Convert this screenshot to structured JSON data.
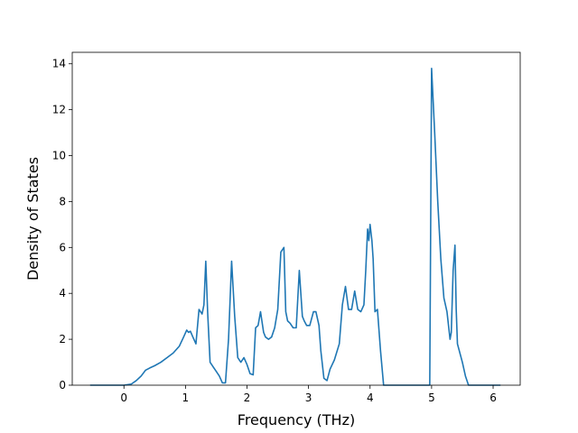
{
  "chart_data": {
    "type": "line",
    "title": "",
    "xlabel": "Frequency (THz)",
    "ylabel": "Density of States",
    "xlim": [
      -0.84,
      6.44
    ],
    "ylim": [
      0,
      14.5
    ],
    "xticks": [
      0,
      1,
      2,
      3,
      4,
      5,
      6
    ],
    "yticks": [
      0,
      2,
      4,
      6,
      8,
      10,
      12,
      14
    ],
    "grid": false,
    "legend": "none",
    "colors": {
      "line": "#1f77b4"
    },
    "series": [
      {
        "x": [
          -0.55,
          -0.3,
          0.0,
          0.12,
          0.2,
          0.28,
          0.35,
          0.42,
          0.5,
          0.6,
          0.7,
          0.8,
          0.9,
          0.97,
          1.02,
          1.05,
          1.08,
          1.12,
          1.17,
          1.22,
          1.27,
          1.3,
          1.33,
          1.36,
          1.4,
          1.45,
          1.5,
          1.55,
          1.6,
          1.65,
          1.7,
          1.75,
          1.8,
          1.85,
          1.9,
          1.95,
          2.0,
          2.05,
          2.1,
          2.14,
          2.18,
          2.22,
          2.27,
          2.3,
          2.35,
          2.4,
          2.45,
          2.5,
          2.55,
          2.6,
          2.63,
          2.66,
          2.7,
          2.75,
          2.8,
          2.85,
          2.9,
          2.93,
          2.97,
          3.02,
          3.08,
          3.12,
          3.17,
          3.2,
          3.25,
          3.3,
          3.35,
          3.42,
          3.5,
          3.55,
          3.6,
          3.65,
          3.7,
          3.75,
          3.8,
          3.85,
          3.9,
          3.93,
          3.96,
          3.98,
          4.0,
          4.03,
          4.05,
          4.08,
          4.12,
          4.17,
          4.22,
          4.28,
          4.5,
          4.97,
          5.0,
          5.05,
          5.1,
          5.15,
          5.2,
          5.25,
          5.3,
          5.32,
          5.35,
          5.38,
          5.4,
          5.42,
          5.45,
          5.5,
          5.55,
          5.6,
          5.7,
          6.0,
          6.12
        ],
        "y": [
          0,
          0,
          0,
          0.05,
          0.2,
          0.4,
          0.65,
          0.75,
          0.85,
          1.0,
          1.2,
          1.4,
          1.7,
          2.1,
          2.4,
          2.3,
          2.35,
          2.1,
          1.8,
          3.3,
          3.1,
          3.5,
          5.4,
          3.2,
          1.0,
          0.8,
          0.6,
          0.4,
          0.1,
          0.1,
          2.0,
          5.4,
          3.0,
          1.2,
          1.0,
          1.2,
          0.9,
          0.5,
          0.45,
          2.5,
          2.6,
          3.2,
          2.3,
          2.1,
          2.0,
          2.1,
          2.5,
          3.3,
          5.8,
          6.0,
          3.2,
          2.8,
          2.7,
          2.5,
          2.5,
          5.0,
          3.0,
          2.8,
          2.6,
          2.6,
          3.2,
          3.2,
          2.6,
          1.5,
          0.3,
          0.2,
          0.7,
          1.1,
          1.8,
          3.5,
          4.3,
          3.3,
          3.3,
          4.1,
          3.3,
          3.2,
          3.5,
          5.0,
          6.8,
          6.3,
          7.0,
          6.3,
          5.5,
          3.2,
          3.3,
          1.5,
          0,
          0,
          0,
          0,
          13.8,
          11.0,
          8.0,
          5.5,
          3.8,
          3.2,
          2.0,
          2.3,
          5.0,
          6.1,
          3.3,
          1.8,
          1.5,
          1.0,
          0.4,
          0,
          0,
          0,
          0
        ]
      }
    ]
  }
}
